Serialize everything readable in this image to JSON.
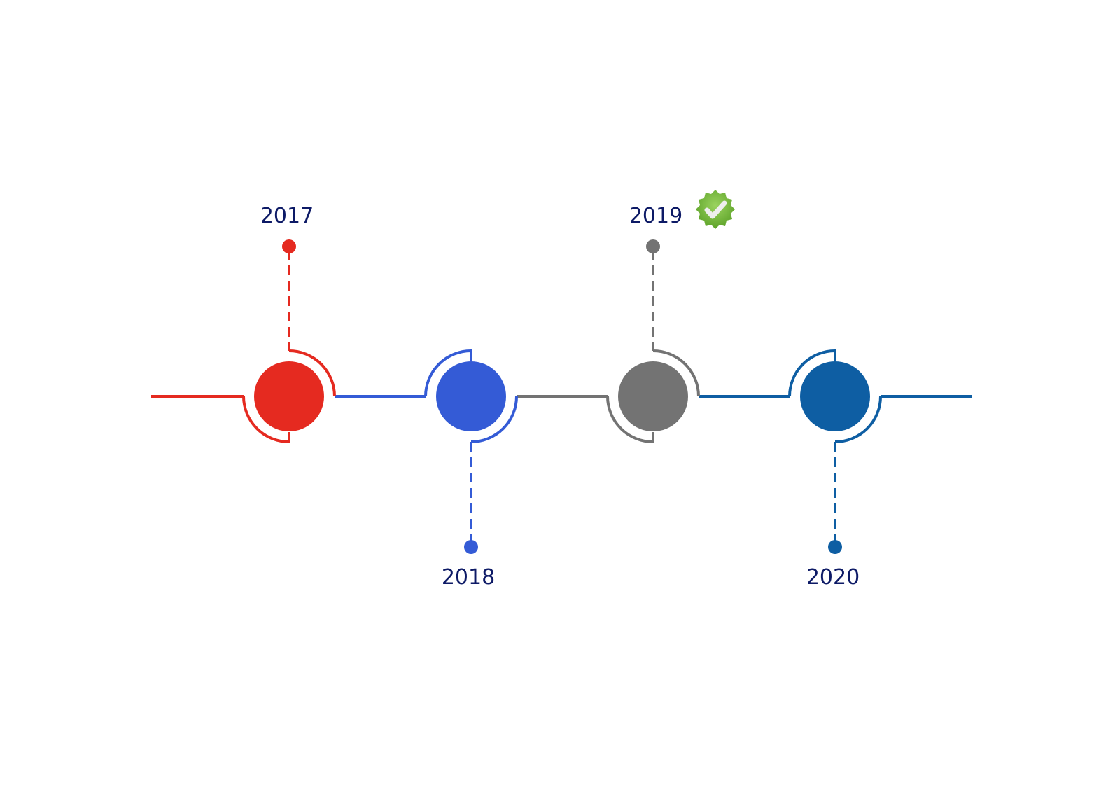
{
  "timeline": {
    "milestones": [
      {
        "year": "2017",
        "color": "#e52a20",
        "label_position": "top",
        "completed": false
      },
      {
        "year": "2018",
        "color": "#345bd6",
        "label_position": "bottom",
        "completed": false
      },
      {
        "year": "2019",
        "color": "#737373",
        "label_position": "top",
        "completed": true
      },
      {
        "year": "2020",
        "color": "#0e5ea3",
        "label_position": "bottom",
        "completed": false
      }
    ],
    "badge": {
      "icon": "check-badge-icon",
      "color": "#7cc242"
    }
  }
}
